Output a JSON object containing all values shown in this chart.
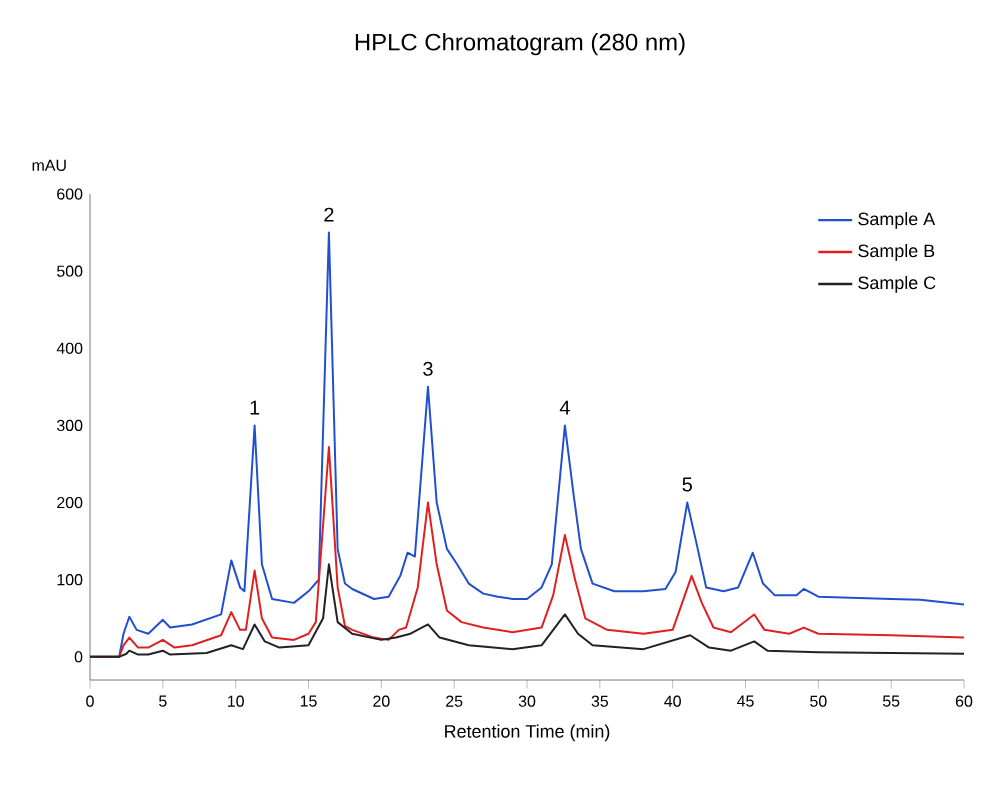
{
  "chart_data": {
    "type": "line",
    "title": "HPLC Chromatogram (280 nm)",
    "xlabel": "Retention Time (min)",
    "ylabel": "mAU",
    "xlim": [
      0,
      60
    ],
    "xticks": [
      0,
      5,
      10,
      15,
      20,
      25,
      30,
      35,
      40,
      45,
      50,
      55,
      60
    ],
    "ylim": [
      -30,
      600
    ],
    "yticks": [
      0,
      100,
      200,
      300,
      400,
      500,
      600
    ],
    "grid": false,
    "legend": "top right",
    "annotations": [
      {
        "text": "1",
        "x": 11.3,
        "y": 300
      },
      {
        "text": "2",
        "x": 16.4,
        "y": 550
      },
      {
        "text": "3",
        "x": 23.2,
        "y": 350
      },
      {
        "text": "4",
        "x": 32.6,
        "y": 300
      },
      {
        "text": "5",
        "x": 41,
        "y": 200
      }
    ],
    "series": [
      {
        "name": "Sample A",
        "color": "#2050d0",
        "x": [
          0,
          2,
          2.3,
          2.7,
          3.2,
          4,
          5,
          5.5,
          7,
          9,
          9.7,
          10.3,
          10.6,
          11.3,
          11.8,
          12.5,
          14,
          15,
          15.7,
          16.4,
          17,
          17.5,
          18,
          19.5,
          20.5,
          21.3,
          21.8,
          22.3,
          23.2,
          23.8,
          24.5,
          25.2,
          26,
          27,
          28,
          29,
          30,
          31,
          31.7,
          32.6,
          33.2,
          33.7,
          34.5,
          36,
          38,
          39.5,
          40.2,
          41,
          41.6,
          42.3,
          43.5,
          44.5,
          45.5,
          46.2,
          47,
          48.5,
          49,
          50,
          55,
          57,
          60
        ],
        "values": [
          0,
          0,
          30,
          52,
          35,
          30,
          48,
          38,
          42,
          55,
          125,
          90,
          85,
          300,
          120,
          75,
          70,
          85,
          100,
          550,
          140,
          95,
          88,
          75,
          78,
          105,
          135,
          130,
          350,
          200,
          140,
          120,
          95,
          82,
          78,
          75,
          75,
          90,
          120,
          300,
          210,
          140,
          95,
          85,
          85,
          88,
          110,
          200,
          150,
          90,
          85,
          90,
          135,
          95,
          80,
          80,
          88,
          78,
          75,
          74,
          68
        ]
      },
      {
        "name": "Sample B",
        "color": "#e02020",
        "x": [
          0,
          2,
          2.3,
          2.7,
          3.3,
          4,
          5,
          5.8,
          7,
          9,
          9.7,
          10.3,
          10.7,
          11.3,
          11.8,
          12.5,
          14,
          15,
          15.5,
          16.4,
          17,
          17.5,
          18,
          19.5,
          20.5,
          21.2,
          21.7,
          22.5,
          23.2,
          23.8,
          24.5,
          25.5,
          27,
          29,
          31,
          31.8,
          32.6,
          33.3,
          34,
          35.5,
          38,
          40,
          41.3,
          42,
          42.8,
          44,
          45.6,
          46.3,
          48,
          49,
          50,
          55,
          60
        ],
        "values": [
          0,
          0,
          15,
          25,
          12,
          12,
          22,
          12,
          15,
          28,
          58,
          35,
          35,
          112,
          50,
          25,
          22,
          30,
          45,
          272,
          90,
          40,
          35,
          25,
          22,
          35,
          38,
          90,
          200,
          120,
          60,
          45,
          38,
          32,
          38,
          80,
          158,
          100,
          50,
          35,
          30,
          35,
          105,
          70,
          38,
          32,
          55,
          35,
          30,
          38,
          30,
          28,
          25
        ]
      },
      {
        "name": "Sample C",
        "color": "#222222",
        "x": [
          0,
          2,
          2.5,
          2.7,
          3.3,
          4,
          5,
          5.5,
          8,
          9.7,
          10.5,
          11.3,
          12,
          13,
          15,
          16,
          16.4,
          17,
          18,
          20,
          21,
          22,
          23.2,
          24,
          26,
          29,
          31,
          32.6,
          33.5,
          34.5,
          38,
          41.2,
          42.5,
          44,
          45.6,
          46.5,
          50,
          55,
          60
        ],
        "values": [
          0,
          0,
          4,
          8,
          3,
          3,
          8,
          3,
          5,
          15,
          10,
          42,
          20,
          12,
          15,
          50,
          120,
          45,
          30,
          22,
          25,
          30,
          42,
          25,
          15,
          10,
          15,
          55,
          30,
          15,
          10,
          28,
          12,
          8,
          20,
          8,
          6,
          5,
          4
        ]
      }
    ]
  }
}
